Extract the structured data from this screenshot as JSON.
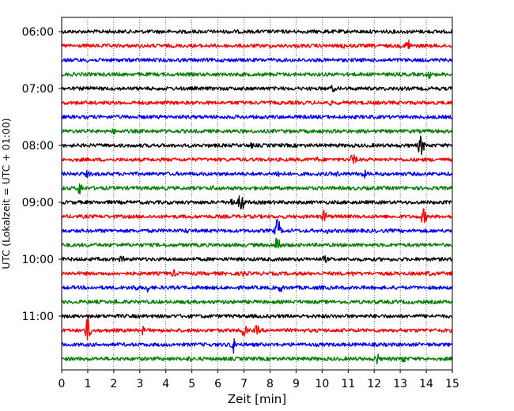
{
  "chart_data": {
    "type": "line",
    "title": "",
    "xlabel": "Zeit  [min]",
    "ylabel": "UTC (Lokalzeit = UTC + 01:00)",
    "xlim": [
      0,
      15
    ],
    "x_ticks": [
      "0",
      "1",
      "2",
      "3",
      "4",
      "5",
      "6",
      "7",
      "8",
      "9",
      "10",
      "11",
      "12",
      "13",
      "14",
      "15"
    ],
    "y_ticks": [
      "06:00",
      "07:00",
      "08:00",
      "09:00",
      "10:00",
      "11:00"
    ],
    "grid": "vertical dotted",
    "trace_interval_minutes": 15,
    "first_trace": "06:00",
    "last_trace": "11:45",
    "trace_colors": [
      "#000000",
      "#ff0000",
      "#0000ff",
      "#008000"
    ],
    "traces": [
      {
        "start": "06:00",
        "color": "#000000",
        "events": [
          {
            "x": 6.5,
            "amp": 4
          },
          {
            "x": 10.1,
            "amp": 3
          }
        ]
      },
      {
        "start": "06:15",
        "color": "#ff0000",
        "events": [
          {
            "x": 10.8,
            "amp": 4
          },
          {
            "x": 13.3,
            "amp": 10
          }
        ]
      },
      {
        "start": "06:30",
        "color": "#0000ff",
        "events": [
          {
            "x": 1.0,
            "amp": 3
          }
        ]
      },
      {
        "start": "06:45",
        "color": "#008000",
        "events": [
          {
            "x": 14.1,
            "amp": 6
          }
        ]
      },
      {
        "start": "07:00",
        "color": "#000000",
        "events": [
          {
            "x": 1.1,
            "amp": 4
          },
          {
            "x": 10.4,
            "amp": 5
          }
        ]
      },
      {
        "start": "07:15",
        "color": "#ff0000",
        "events": [
          {
            "x": 6.8,
            "amp": 3
          },
          {
            "x": 10.3,
            "amp": 4
          }
        ]
      },
      {
        "start": "07:30",
        "color": "#0000ff",
        "events": [
          {
            "x": 7.0,
            "amp": 2
          }
        ]
      },
      {
        "start": "07:45",
        "color": "#008000",
        "events": [
          {
            "x": 2.0,
            "amp": 4
          }
        ]
      },
      {
        "start": "08:00",
        "color": "#000000",
        "events": [
          {
            "x": 7.3,
            "amp": 4
          },
          {
            "x": 13.8,
            "amp": 14
          }
        ]
      },
      {
        "start": "08:15",
        "color": "#ff0000",
        "events": [
          {
            "x": 9.8,
            "amp": 4
          },
          {
            "x": 11.2,
            "amp": 9
          }
        ]
      },
      {
        "start": "08:30",
        "color": "#0000ff",
        "events": [
          {
            "x": 1.0,
            "amp": 5
          },
          {
            "x": 8.3,
            "amp": 6
          },
          {
            "x": 10.6,
            "amp": 4
          },
          {
            "x": 11.6,
            "amp": 6
          }
        ]
      },
      {
        "start": "08:45",
        "color": "#008000",
        "events": [
          {
            "x": 0.7,
            "amp": 9
          },
          {
            "x": 5.8,
            "amp": 4
          }
        ]
      },
      {
        "start": "09:00",
        "color": "#000000",
        "events": [
          {
            "x": 6.5,
            "amp": 8
          },
          {
            "x": 6.9,
            "amp": 14
          }
        ]
      },
      {
        "start": "09:15",
        "color": "#ff0000",
        "events": [
          {
            "x": 10.1,
            "amp": 9
          },
          {
            "x": 13.9,
            "amp": 11
          }
        ]
      },
      {
        "start": "09:30",
        "color": "#0000ff",
        "events": [
          {
            "x": 4.8,
            "amp": 4
          },
          {
            "x": 8.3,
            "amp": 16
          },
          {
            "x": 10.2,
            "amp": 4
          }
        ]
      },
      {
        "start": "09:45",
        "color": "#008000",
        "events": [
          {
            "x": 8.3,
            "amp": 14
          }
        ]
      },
      {
        "start": "10:00",
        "color": "#000000",
        "events": [
          {
            "x": 2.3,
            "amp": 5
          },
          {
            "x": 10.1,
            "amp": 5
          }
        ]
      },
      {
        "start": "10:15",
        "color": "#ff0000",
        "events": [
          {
            "x": 4.3,
            "amp": 5
          },
          {
            "x": 7.0,
            "amp": 5
          },
          {
            "x": 11.2,
            "amp": 4
          },
          {
            "x": 14.1,
            "amp": 4
          }
        ]
      },
      {
        "start": "10:30",
        "color": "#0000ff",
        "events": [
          {
            "x": 2.8,
            "amp": 6
          },
          {
            "x": 3.3,
            "amp": 6
          },
          {
            "x": 8.4,
            "amp": 6
          },
          {
            "x": 10.0,
            "amp": 3
          }
        ]
      },
      {
        "start": "10:45",
        "color": "#008000",
        "events": [
          {
            "x": 2.1,
            "amp": 4
          },
          {
            "x": 12.1,
            "amp": 3
          }
        ]
      },
      {
        "start": "11:00",
        "color": "#000000",
        "events": [
          {
            "x": 10.0,
            "amp": 3
          }
        ]
      },
      {
        "start": "11:15",
        "color": "#ff0000",
        "events": [
          {
            "x": 1.0,
            "amp": 16
          },
          {
            "x": 3.1,
            "amp": 6
          },
          {
            "x": 7.0,
            "amp": 9
          },
          {
            "x": 7.5,
            "amp": 7
          }
        ]
      },
      {
        "start": "11:30",
        "color": "#0000ff",
        "events": [
          {
            "x": 6.6,
            "amp": 11
          }
        ]
      },
      {
        "start": "11:45",
        "color": "#008000",
        "events": [
          {
            "x": 4.9,
            "amp": 4
          },
          {
            "x": 12.1,
            "amp": 8
          },
          {
            "x": 13.1,
            "amp": 6
          }
        ]
      }
    ]
  }
}
